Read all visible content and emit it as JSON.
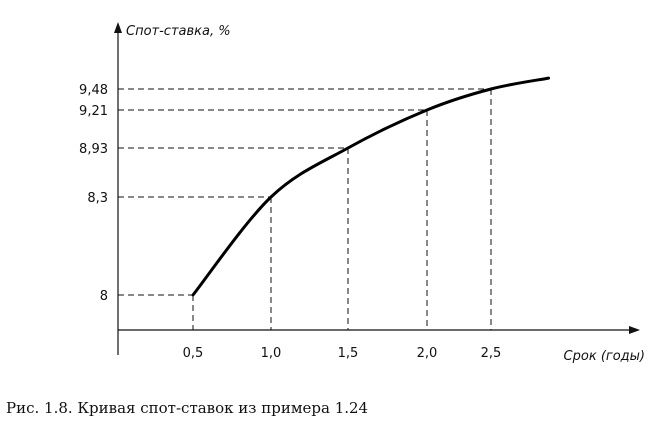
{
  "chart_data": {
    "type": "line",
    "xlabel": "Срок (годы)",
    "ylabel": "Спот-ставка, %",
    "x_ticks": [
      "0,5",
      "1,0",
      "1,5",
      "2,0",
      "2,5"
    ],
    "y_ticks": [
      "8",
      "8,3",
      "8,93",
      "9,21",
      "9,48"
    ],
    "points": [
      {
        "x": 0.5,
        "y": 8.0
      },
      {
        "x": 1.0,
        "y": 8.3
      },
      {
        "x": 1.5,
        "y": 8.93
      },
      {
        "x": 2.0,
        "y": 9.21
      },
      {
        "x": 2.5,
        "y": 9.48
      }
    ],
    "curve_end": {
      "x": 2.95,
      "y": 9.62
    },
    "reference_lines": "dashed",
    "grid": false
  },
  "caption": "Рис. 1.8. Кривая спот-ставок из примера 1.24"
}
